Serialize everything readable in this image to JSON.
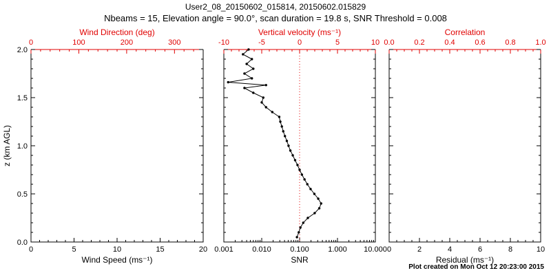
{
  "header": {
    "title": "User2_08_20150602_015814, 20150602.015829",
    "subtitle": "Nbeams = 15, Elevation angle = 90.0°, scan duration = 19.8 s, SNR Threshold = 0.008"
  },
  "footer": {
    "created": "Plot created on Mon Oct 12 20:23:00 2015"
  },
  "colors": {
    "foreground": "#000000",
    "background": "#ffffff",
    "secondary_axis": "#e00000"
  },
  "chart_data": {
    "type": "line",
    "title": "User2_08_20150602_015814, 20150602.015829",
    "subtitle": "Nbeams = 15, Elevation angle = 90.0°, scan duration = 19.8 s, SNR Threshold = 0.008",
    "y_axis": {
      "label": "z (km AGL)",
      "range": [
        0,
        2
      ],
      "ticks": [
        0,
        0.5,
        1,
        1.5,
        2
      ],
      "tick_labels": [
        "0.0",
        "0.5",
        "1.0",
        "1.5",
        "2.0"
      ],
      "minor_step": 0.1
    },
    "panels": [
      {
        "name": "wind",
        "bottom_axis": {
          "label": "Wind Speed (ms⁻¹)",
          "scale": "linear",
          "range": [
            0,
            20
          ],
          "ticks": [
            0,
            5,
            10,
            15,
            20
          ],
          "tick_labels": [
            "0",
            "5",
            "10",
            "15",
            "20"
          ],
          "minor_step": 1
        },
        "top_axis": {
          "label": "Wind Direction (deg)",
          "scale": "linear",
          "range": [
            0,
            360
          ],
          "ticks": [
            0,
            100,
            200,
            300
          ],
          "tick_labels": [
            "0",
            "100",
            "200",
            "300"
          ],
          "minor_step": 20
        },
        "series": []
      },
      {
        "name": "snr",
        "bottom_axis": {
          "label": "SNR",
          "scale": "log",
          "range": [
            0.001,
            10
          ],
          "ticks": [
            0.001,
            0.01,
            0.1,
            1,
            10
          ],
          "tick_labels": [
            "0.001",
            "0.010",
            "0.100",
            "1.000",
            "10.000"
          ]
        },
        "top_axis": {
          "label": "Vertical velocity (ms⁻¹)",
          "scale": "linear",
          "range": [
            -10,
            10
          ],
          "ticks": [
            -10,
            -5,
            0,
            5,
            10
          ],
          "tick_labels": [
            "-10",
            "-5",
            "0",
            "5",
            "10"
          ],
          "minor_step": 1
        },
        "reference_line": {
          "value": 0.1,
          "style": "dotted",
          "color": "#e00000"
        },
        "series": [
          {
            "name": "snr-profile",
            "color": "#000000",
            "marker": "circle",
            "points": [
              [
                0.085,
                0.05
              ],
              [
                0.095,
                0.1
              ],
              [
                0.105,
                0.15
              ],
              [
                0.125,
                0.2
              ],
              [
                0.165,
                0.25
              ],
              [
                0.25,
                0.3
              ],
              [
                0.33,
                0.35
              ],
              [
                0.37,
                0.4
              ],
              [
                0.31,
                0.45
              ],
              [
                0.245,
                0.5
              ],
              [
                0.195,
                0.55
              ],
              [
                0.16,
                0.6
              ],
              [
                0.135,
                0.65
              ],
              [
                0.115,
                0.7
              ],
              [
                0.1,
                0.75
              ],
              [
                0.088,
                0.8
              ],
              [
                0.076,
                0.85
              ],
              [
                0.066,
                0.9
              ],
              [
                0.057,
                0.95
              ],
              [
                0.051,
                1.0
              ],
              [
                0.046,
                1.05
              ],
              [
                0.041,
                1.1
              ],
              [
                0.037,
                1.15
              ],
              [
                0.034,
                1.2
              ],
              [
                0.031,
                1.25
              ],
              [
                0.029,
                1.3
              ],
              [
                0.019,
                1.35
              ],
              [
                0.013,
                1.4
              ],
              [
                0.01,
                1.45
              ],
              [
                0.011,
                1.5
              ],
              [
                0.006,
                1.55
              ],
              [
                0.0035,
                1.6
              ],
              [
                0.013,
                1.63
              ],
              [
                0.0013,
                1.66
              ],
              [
                0.0055,
                1.7
              ],
              [
                0.0035,
                1.75
              ],
              [
                0.006,
                1.8
              ],
              [
                0.004,
                1.85
              ],
              [
                0.0055,
                1.9
              ],
              [
                0.0032,
                1.95
              ],
              [
                0.0045,
                2.0
              ]
            ]
          }
        ]
      },
      {
        "name": "residual",
        "bottom_axis": {
          "label": "Residual (ms⁻¹)",
          "scale": "linear",
          "range": [
            0,
            10
          ],
          "ticks": [
            0,
            2,
            4,
            6,
            8,
            10
          ],
          "tick_labels": [
            "0",
            "2",
            "4",
            "6",
            "8",
            "10"
          ],
          "minor_step": 0.5
        },
        "top_axis": {
          "label": "Correlation",
          "scale": "linear",
          "range": [
            0,
            1
          ],
          "ticks": [
            0,
            0.2,
            0.4,
            0.6,
            0.8,
            1
          ],
          "tick_labels": [
            "0.0",
            "0.2",
            "0.4",
            "0.6",
            "0.8",
            "1.0"
          ],
          "minor_step": 0.05
        },
        "series": []
      }
    ]
  }
}
